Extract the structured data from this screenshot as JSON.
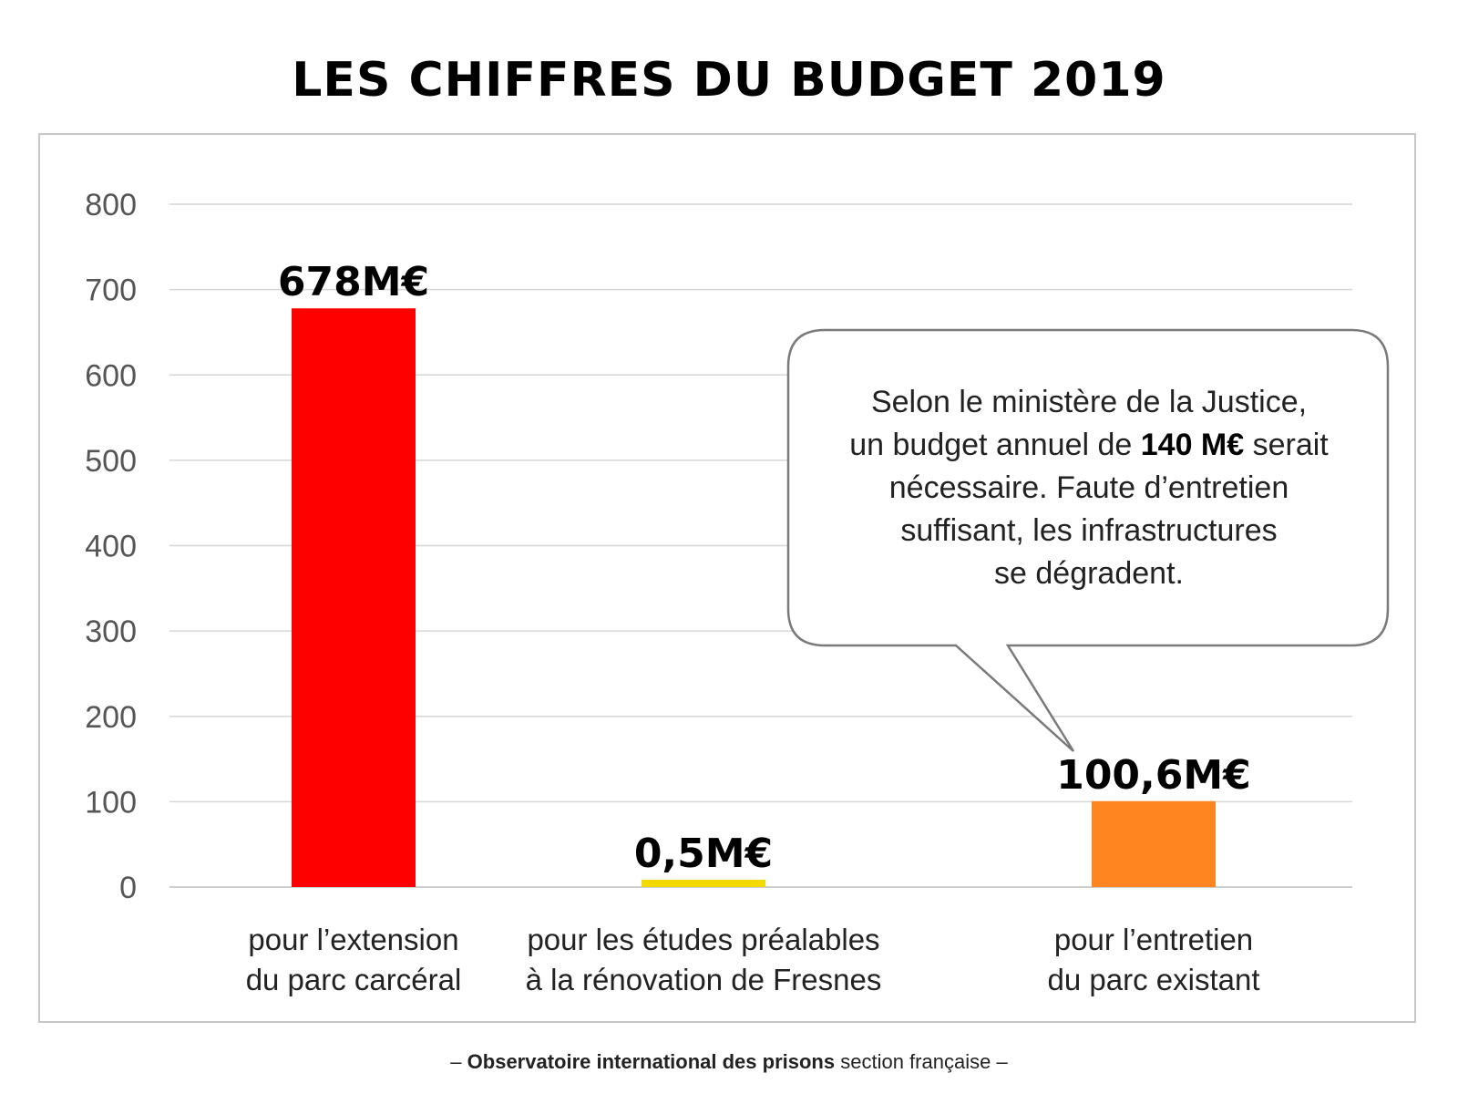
{
  "title": "LES CHIFFRES DU BUDGET 2019",
  "chart_data": {
    "type": "bar",
    "categories": [
      [
        "pour l’extension",
        "du parc carcéral"
      ],
      [
        "pour les études préalables",
        "à la rénovation de Fresnes"
      ],
      [
        "pour l’entretien",
        "du parc existant"
      ]
    ],
    "values": [
      678,
      0.5,
      100.6
    ],
    "value_labels": [
      "678M€",
      "0,5M€",
      "100,6M€"
    ],
    "colors": [
      "#ff0000",
      "#f2d900",
      "#ff8520"
    ],
    "ylim": [
      0,
      800
    ],
    "yticks": [
      0,
      100,
      200,
      300,
      400,
      500,
      600,
      700,
      800
    ],
    "grid": true,
    "title": "",
    "xlabel": "",
    "ylabel": ""
  },
  "callout": {
    "line1": "Selon le ministère de la Justice,",
    "line2_before": "un budget annuel de ",
    "line2_bold": "140 M€",
    "line2_after": " serait",
    "line3": "nécessaire. Faute d’entretien",
    "line4": "suffisant, les infrastructures",
    "line5": "se dégradent."
  },
  "footer": {
    "dash_left": "–",
    "bold": "Observatoire international des prisons",
    "regular": "section française",
    "dash_right": "–"
  }
}
